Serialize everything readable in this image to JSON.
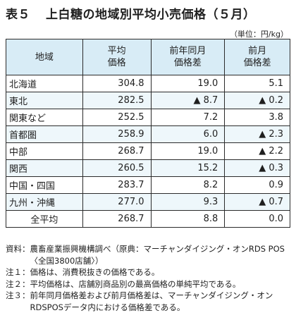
{
  "title": {
    "number": "表５",
    "text": "上白糖の地域別平均小売価格（５月）"
  },
  "unit": "（単位：円/kg）",
  "headers": {
    "region": "地域",
    "price_1": "平均",
    "price_2": "価格",
    "yoy_1": "前年同月",
    "yoy_2": "価格差",
    "mom_1": "前月",
    "mom_2": "価格差"
  },
  "rows": [
    {
      "region": "北海道",
      "price": "304.8",
      "yoy": "19.0",
      "mom": "5.1"
    },
    {
      "region": "東北",
      "price": "282.5",
      "yoy": "▲ 8.7",
      "mom": "▲ 0.2"
    },
    {
      "region": "関東など",
      "price": "252.5",
      "yoy": "7.2",
      "mom": "3.8"
    },
    {
      "region": "首都圏",
      "price": "258.9",
      "yoy": "6.0",
      "mom": "▲ 2.3"
    },
    {
      "region": "中部",
      "price": "268.7",
      "yoy": "19.0",
      "mom": "▲ 2.2"
    },
    {
      "region": "関西",
      "price": "260.5",
      "yoy": "15.2",
      "mom": "▲ 0.3"
    },
    {
      "region": "中国・四国",
      "price": "283.7",
      "yoy": "8.2",
      "mom": "0.9"
    },
    {
      "region": "九州・沖縄",
      "price": "277.0",
      "yoy": "9.3",
      "mom": "▲ 0.7"
    }
  ],
  "total": {
    "region": "全平均",
    "price": "268.7",
    "yoy": "8.8",
    "mom": "0.0"
  },
  "notes": [
    {
      "key": "資料：",
      "text": "農畜産業振興機構調べ（原典：マーチャンダイジング・オンRDS POS〈全国3800店舗〉）"
    },
    {
      "key": "注１：",
      "text": "価格は、消費税抜きの価格である。"
    },
    {
      "key": "注２：",
      "text": "平均価格は、店舗別商品別の最高価格の単純平均である。"
    },
    {
      "key": "注３：",
      "text": "前年同月価格差および前月価格差は、マーチャンダイジング・オンRDSPOSデータ内における価格差である。"
    }
  ]
}
